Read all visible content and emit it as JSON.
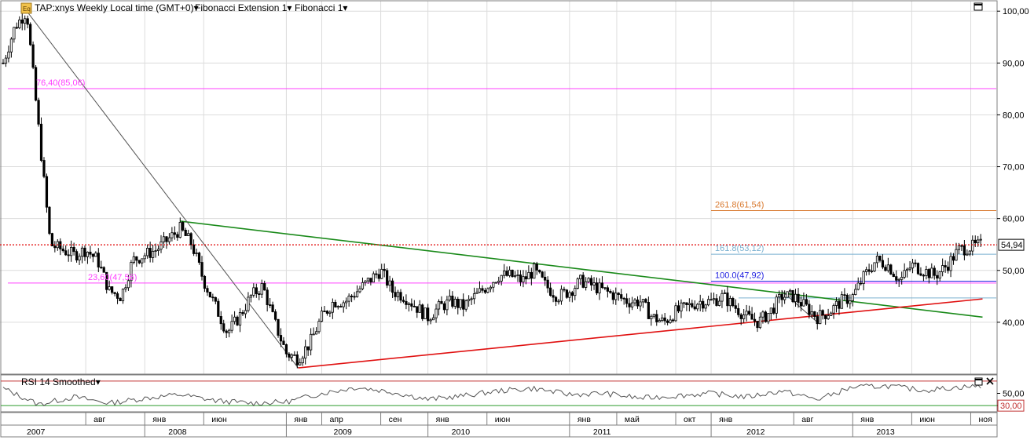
{
  "header": {
    "symbol_label": "TAP:xnys Weekly Local time (GMT+0)",
    "study1_label": "Fibonacci Extension 1",
    "study2_label": "Fibonacci 1",
    "dropdown_glyph": "▾",
    "window_button_icon": "maximize-icon"
  },
  "rsi_panel": {
    "label": "RSI 14 Smoothed",
    "upper_level": 70,
    "lower_level": 30,
    "tick_labels": [
      "50,00",
      "30,00"
    ],
    "tick_values": [
      50,
      30
    ]
  },
  "colors": {
    "grid": "#dcdcdc",
    "candle": "#000000",
    "current_price_line": "#e00000",
    "fib_retr_line": "#ff40ff",
    "ext_2618": "#d97a30",
    "ext_1618": "#7ab0d0",
    "ext_1000": "#2020e0",
    "downtrend": "#1a8a1a",
    "uptrend": "#e01010",
    "fib_anchor_line": "#555555",
    "rsi_line": "#555555",
    "rsi_low_level": "#2a9a2a",
    "rsi_high_level": "#c03030"
  },
  "chart_data": [
    {
      "type": "candlestick",
      "symbol": "TAP:xnys",
      "timeframe": "Weekly",
      "ylim": [
        30,
        102
      ],
      "y_ticks": [
        40,
        50,
        60,
        70,
        80,
        90,
        100
      ],
      "y_tick_labels": [
        "40,00",
        "50,00",
        "60,00",
        "70,00",
        "80,00",
        "90,00",
        "100,00"
      ],
      "last_price": 54.94,
      "last_price_label": "54,94",
      "grid": true,
      "x_month_labels": [
        {
          "date": "2007-08",
          "label": "авг"
        },
        {
          "date": "2008-01",
          "label": "янв"
        },
        {
          "date": "2008-06",
          "label": "июн"
        },
        {
          "date": "2009-01",
          "label": "янв"
        },
        {
          "date": "2009-04",
          "label": "апр"
        },
        {
          "date": "2009-09",
          "label": "сен"
        },
        {
          "date": "2010-01",
          "label": "янв"
        },
        {
          "date": "2010-06",
          "label": "июн"
        },
        {
          "date": "2011-01",
          "label": "янв"
        },
        {
          "date": "2011-05",
          "label": "май"
        },
        {
          "date": "2011-10",
          "label": "окт"
        },
        {
          "date": "2012-01",
          "label": "янв"
        },
        {
          "date": "2012-08",
          "label": "авг"
        },
        {
          "date": "2013-01",
          "label": "янв"
        },
        {
          "date": "2013-06",
          "label": "июн"
        },
        {
          "date": "2013-11",
          "label": "ноя"
        }
      ],
      "x_year_labels": [
        {
          "date": "2007-03",
          "label": "2007"
        },
        {
          "date": "2008-03",
          "label": "2008"
        },
        {
          "date": "2009-05",
          "label": "2009"
        },
        {
          "date": "2010-03",
          "label": "2010"
        },
        {
          "date": "2011-03",
          "label": "2011"
        },
        {
          "date": "2012-04",
          "label": "2012"
        },
        {
          "date": "2013-03",
          "label": "2013"
        }
      ],
      "price_path": [
        {
          "date": "2007-01",
          "price": 90
        },
        {
          "date": "2007-02",
          "price": 97
        },
        {
          "date": "2007-03",
          "price": 100
        },
        {
          "date": "2007-05",
          "price": 55
        },
        {
          "date": "2007-07",
          "price": 53
        },
        {
          "date": "2007-08",
          "price": 54
        },
        {
          "date": "2007-09",
          "price": 52
        },
        {
          "date": "2007-10",
          "price": 46
        },
        {
          "date": "2007-11",
          "price": 45
        },
        {
          "date": "2007-12",
          "price": 52
        },
        {
          "date": "2008-02",
          "price": 54
        },
        {
          "date": "2008-03",
          "price": 56
        },
        {
          "date": "2008-04",
          "price": 58
        },
        {
          "date": "2008-05",
          "price": 55
        },
        {
          "date": "2008-06",
          "price": 48
        },
        {
          "date": "2008-07",
          "price": 43
        },
        {
          "date": "2008-08",
          "price": 38
        },
        {
          "date": "2008-09",
          "price": 41
        },
        {
          "date": "2008-10",
          "price": 45
        },
        {
          "date": "2008-11",
          "price": 47
        },
        {
          "date": "2008-12",
          "price": 40
        },
        {
          "date": "2009-01",
          "price": 34
        },
        {
          "date": "2009-02",
          "price": 33
        },
        {
          "date": "2009-03",
          "price": 36
        },
        {
          "date": "2009-04",
          "price": 41
        },
        {
          "date": "2009-05",
          "price": 44
        },
        {
          "date": "2009-06",
          "price": 44
        },
        {
          "date": "2009-07",
          "price": 46
        },
        {
          "date": "2009-08",
          "price": 48
        },
        {
          "date": "2009-09",
          "price": 50
        },
        {
          "date": "2009-10",
          "price": 46
        },
        {
          "date": "2009-11",
          "price": 45
        },
        {
          "date": "2009-12",
          "price": 43
        },
        {
          "date": "2010-01",
          "price": 41
        },
        {
          "date": "2010-02",
          "price": 43
        },
        {
          "date": "2010-03",
          "price": 44
        },
        {
          "date": "2010-04",
          "price": 43
        },
        {
          "date": "2010-05",
          "price": 45
        },
        {
          "date": "2010-06",
          "price": 47
        },
        {
          "date": "2010-07",
          "price": 49
        },
        {
          "date": "2010-08",
          "price": 49
        },
        {
          "date": "2010-09",
          "price": 48
        },
        {
          "date": "2010-10",
          "price": 50
        },
        {
          "date": "2010-11",
          "price": 47
        },
        {
          "date": "2010-12",
          "price": 45
        },
        {
          "date": "2011-01",
          "price": 46
        },
        {
          "date": "2011-02",
          "price": 48
        },
        {
          "date": "2011-03",
          "price": 47
        },
        {
          "date": "2011-04",
          "price": 46
        },
        {
          "date": "2011-05",
          "price": 45
        },
        {
          "date": "2011-06",
          "price": 44
        },
        {
          "date": "2011-07",
          "price": 44
        },
        {
          "date": "2011-08",
          "price": 41
        },
        {
          "date": "2011-09",
          "price": 40
        },
        {
          "date": "2011-10",
          "price": 42
        },
        {
          "date": "2011-11",
          "price": 43
        },
        {
          "date": "2011-12",
          "price": 44
        },
        {
          "date": "2012-01",
          "price": 44
        },
        {
          "date": "2012-02",
          "price": 45
        },
        {
          "date": "2012-03",
          "price": 43
        },
        {
          "date": "2012-04",
          "price": 41
        },
        {
          "date": "2012-05",
          "price": 40
        },
        {
          "date": "2012-06",
          "price": 42
        },
        {
          "date": "2012-07",
          "price": 45
        },
        {
          "date": "2012-08",
          "price": 45
        },
        {
          "date": "2012-09",
          "price": 43
        },
        {
          "date": "2012-10",
          "price": 41
        },
        {
          "date": "2012-11",
          "price": 42
        },
        {
          "date": "2012-12",
          "price": 44
        },
        {
          "date": "2013-01",
          "price": 45
        },
        {
          "date": "2013-02",
          "price": 49
        },
        {
          "date": "2013-03",
          "price": 52
        },
        {
          "date": "2013-04",
          "price": 51
        },
        {
          "date": "2013-05",
          "price": 48
        },
        {
          "date": "2013-06",
          "price": 51
        },
        {
          "date": "2013-07",
          "price": 50
        },
        {
          "date": "2013-08",
          "price": 49
        },
        {
          "date": "2013-09",
          "price": 51
        },
        {
          "date": "2013-10",
          "price": 54
        },
        {
          "date": "2013-11",
          "price": 54.5
        },
        {
          "date": "2013-12",
          "price": 54.94
        }
      ],
      "horizontal_levels": [
        {
          "value": 85.06,
          "label": "76,40(85,06)",
          "color_key": "fib_retr_line"
        },
        {
          "value": 47.56,
          "label": "23,60(47,56)",
          "color_key": "fib_retr_line"
        },
        {
          "value": 61.54,
          "label": "261.8(61,54)",
          "color_key": "ext_2618"
        },
        {
          "value": 53.12,
          "label": "161.8(53,12)",
          "color_key": "ext_1618"
        },
        {
          "value": 47.92,
          "label": "100.0(47,92)",
          "color_key": "ext_1000"
        },
        {
          "value": 44.7,
          "label": "",
          "color_key": "ext_1618"
        }
      ],
      "trendlines": [
        {
          "name": "downtrend",
          "color_key": "downtrend",
          "from": {
            "date": "2008-04",
            "price": 59.5
          },
          "to": {
            "date": "2013-12",
            "price": 41
          }
        },
        {
          "name": "uptrend",
          "color_key": "uptrend",
          "from": {
            "date": "2009-02",
            "price": 31.2
          },
          "to": {
            "date": "2013-12",
            "price": 44.5
          }
        },
        {
          "name": "fib-anchor",
          "color_key": "fib_anchor_line",
          "from": {
            "date": "2007-03",
            "price": 100
          },
          "to": {
            "date": "2009-02",
            "price": 31.2
          }
        },
        {
          "name": "ext-anchor",
          "color_key": "fib_anchor_line",
          "from": {
            "date": "2012-07",
            "price": 46
          },
          "to": {
            "date": "2012-10",
            "price": 40
          }
        }
      ]
    },
    {
      "type": "line",
      "name": "RSI 14 Smoothed",
      "ylim": [
        20,
        80
      ],
      "x": [
        "2007-01",
        "2007-04",
        "2007-07",
        "2007-10",
        "2008-01",
        "2008-04",
        "2008-07",
        "2008-10",
        "2009-01",
        "2009-04",
        "2009-07",
        "2009-10",
        "2010-01",
        "2010-04",
        "2010-07",
        "2010-10",
        "2011-01",
        "2011-04",
        "2011-07",
        "2011-10",
        "2012-01",
        "2012-04",
        "2012-07",
        "2012-10",
        "2013-01",
        "2013-04",
        "2013-07",
        "2013-10",
        "2013-12"
      ],
      "values": [
        58,
        32,
        44,
        34,
        42,
        48,
        38,
        34,
        36,
        50,
        60,
        52,
        40,
        46,
        54,
        58,
        48,
        50,
        42,
        46,
        50,
        44,
        54,
        40,
        60,
        62,
        55,
        60,
        62
      ]
    }
  ]
}
